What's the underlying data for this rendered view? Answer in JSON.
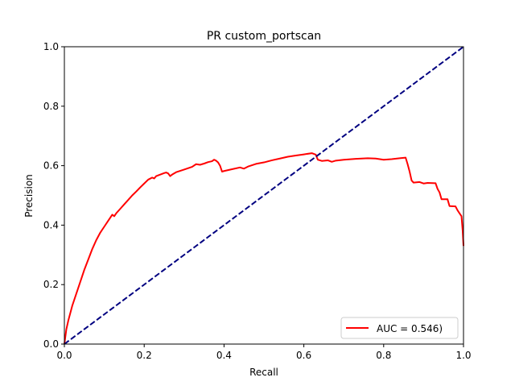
{
  "chart_data": {
    "type": "line",
    "title": "PR custom_portscan",
    "xlabel": "Recall",
    "ylabel": "Precision",
    "xlim": [
      0,
      1
    ],
    "ylim": [
      0,
      1
    ],
    "x_ticks": [
      "0.0",
      "0.2",
      "0.4",
      "0.6",
      "0.8",
      "1.0"
    ],
    "y_ticks": [
      "0.0",
      "0.2",
      "0.4",
      "0.6",
      "0.8",
      "1.0"
    ],
    "grid": false,
    "legend": {
      "placement": "lower-right",
      "entries": [
        {
          "label": "AUC = 0.546)",
          "color": "#ff0000"
        }
      ]
    },
    "series": [
      {
        "name": "AUC = 0.546)",
        "color": "#ff0000",
        "style": "solid",
        "points": [
          [
            0.0,
            0.0
          ],
          [
            0.005,
            0.05
          ],
          [
            0.01,
            0.08
          ],
          [
            0.02,
            0.13
          ],
          [
            0.03,
            0.17
          ],
          [
            0.04,
            0.21
          ],
          [
            0.05,
            0.25
          ],
          [
            0.06,
            0.285
          ],
          [
            0.07,
            0.32
          ],
          [
            0.08,
            0.35
          ],
          [
            0.09,
            0.375
          ],
          [
            0.1,
            0.395
          ],
          [
            0.11,
            0.415
          ],
          [
            0.12,
            0.435
          ],
          [
            0.125,
            0.43
          ],
          [
            0.13,
            0.44
          ],
          [
            0.14,
            0.455
          ],
          [
            0.15,
            0.47
          ],
          [
            0.16,
            0.485
          ],
          [
            0.17,
            0.5
          ],
          [
            0.18,
            0.513
          ],
          [
            0.19,
            0.527
          ],
          [
            0.2,
            0.54
          ],
          [
            0.21,
            0.553
          ],
          [
            0.22,
            0.56
          ],
          [
            0.225,
            0.557
          ],
          [
            0.23,
            0.565
          ],
          [
            0.24,
            0.57
          ],
          [
            0.25,
            0.575
          ],
          [
            0.255,
            0.577
          ],
          [
            0.26,
            0.574
          ],
          [
            0.265,
            0.565
          ],
          [
            0.27,
            0.57
          ],
          [
            0.28,
            0.578
          ],
          [
            0.3,
            0.587
          ],
          [
            0.32,
            0.596
          ],
          [
            0.33,
            0.605
          ],
          [
            0.34,
            0.603
          ],
          [
            0.35,
            0.607
          ],
          [
            0.36,
            0.612
          ],
          [
            0.37,
            0.615
          ],
          [
            0.375,
            0.62
          ],
          [
            0.38,
            0.617
          ],
          [
            0.385,
            0.611
          ],
          [
            0.39,
            0.6
          ],
          [
            0.395,
            0.58
          ],
          [
            0.4,
            0.582
          ],
          [
            0.42,
            0.588
          ],
          [
            0.44,
            0.594
          ],
          [
            0.45,
            0.59
          ],
          [
            0.46,
            0.597
          ],
          [
            0.48,
            0.606
          ],
          [
            0.5,
            0.611
          ],
          [
            0.52,
            0.618
          ],
          [
            0.54,
            0.624
          ],
          [
            0.56,
            0.63
          ],
          [
            0.58,
            0.634
          ],
          [
            0.6,
            0.638
          ],
          [
            0.62,
            0.642
          ],
          [
            0.63,
            0.637
          ],
          [
            0.635,
            0.62
          ],
          [
            0.645,
            0.616
          ],
          [
            0.66,
            0.618
          ],
          [
            0.67,
            0.613
          ],
          [
            0.68,
            0.617
          ],
          [
            0.7,
            0.62
          ],
          [
            0.73,
            0.623
          ],
          [
            0.76,
            0.625
          ],
          [
            0.78,
            0.624
          ],
          [
            0.8,
            0.62
          ],
          [
            0.82,
            0.622
          ],
          [
            0.84,
            0.625
          ],
          [
            0.855,
            0.627
          ],
          [
            0.86,
            0.605
          ],
          [
            0.865,
            0.58
          ],
          [
            0.87,
            0.55
          ],
          [
            0.875,
            0.543
          ],
          [
            0.89,
            0.545
          ],
          [
            0.9,
            0.54
          ],
          [
            0.91,
            0.542
          ],
          [
            0.93,
            0.541
          ],
          [
            0.935,
            0.522
          ],
          [
            0.94,
            0.51
          ],
          [
            0.945,
            0.487
          ],
          [
            0.96,
            0.487
          ],
          [
            0.965,
            0.464
          ],
          [
            0.98,
            0.463
          ],
          [
            0.985,
            0.45
          ],
          [
            0.99,
            0.44
          ],
          [
            0.995,
            0.43
          ],
          [
            0.998,
            0.38
          ],
          [
            1.0,
            0.33
          ]
        ]
      },
      {
        "name": "",
        "color": "#000080",
        "style": "dashed",
        "points": [
          [
            0,
            0
          ],
          [
            1,
            1
          ]
        ]
      }
    ]
  }
}
